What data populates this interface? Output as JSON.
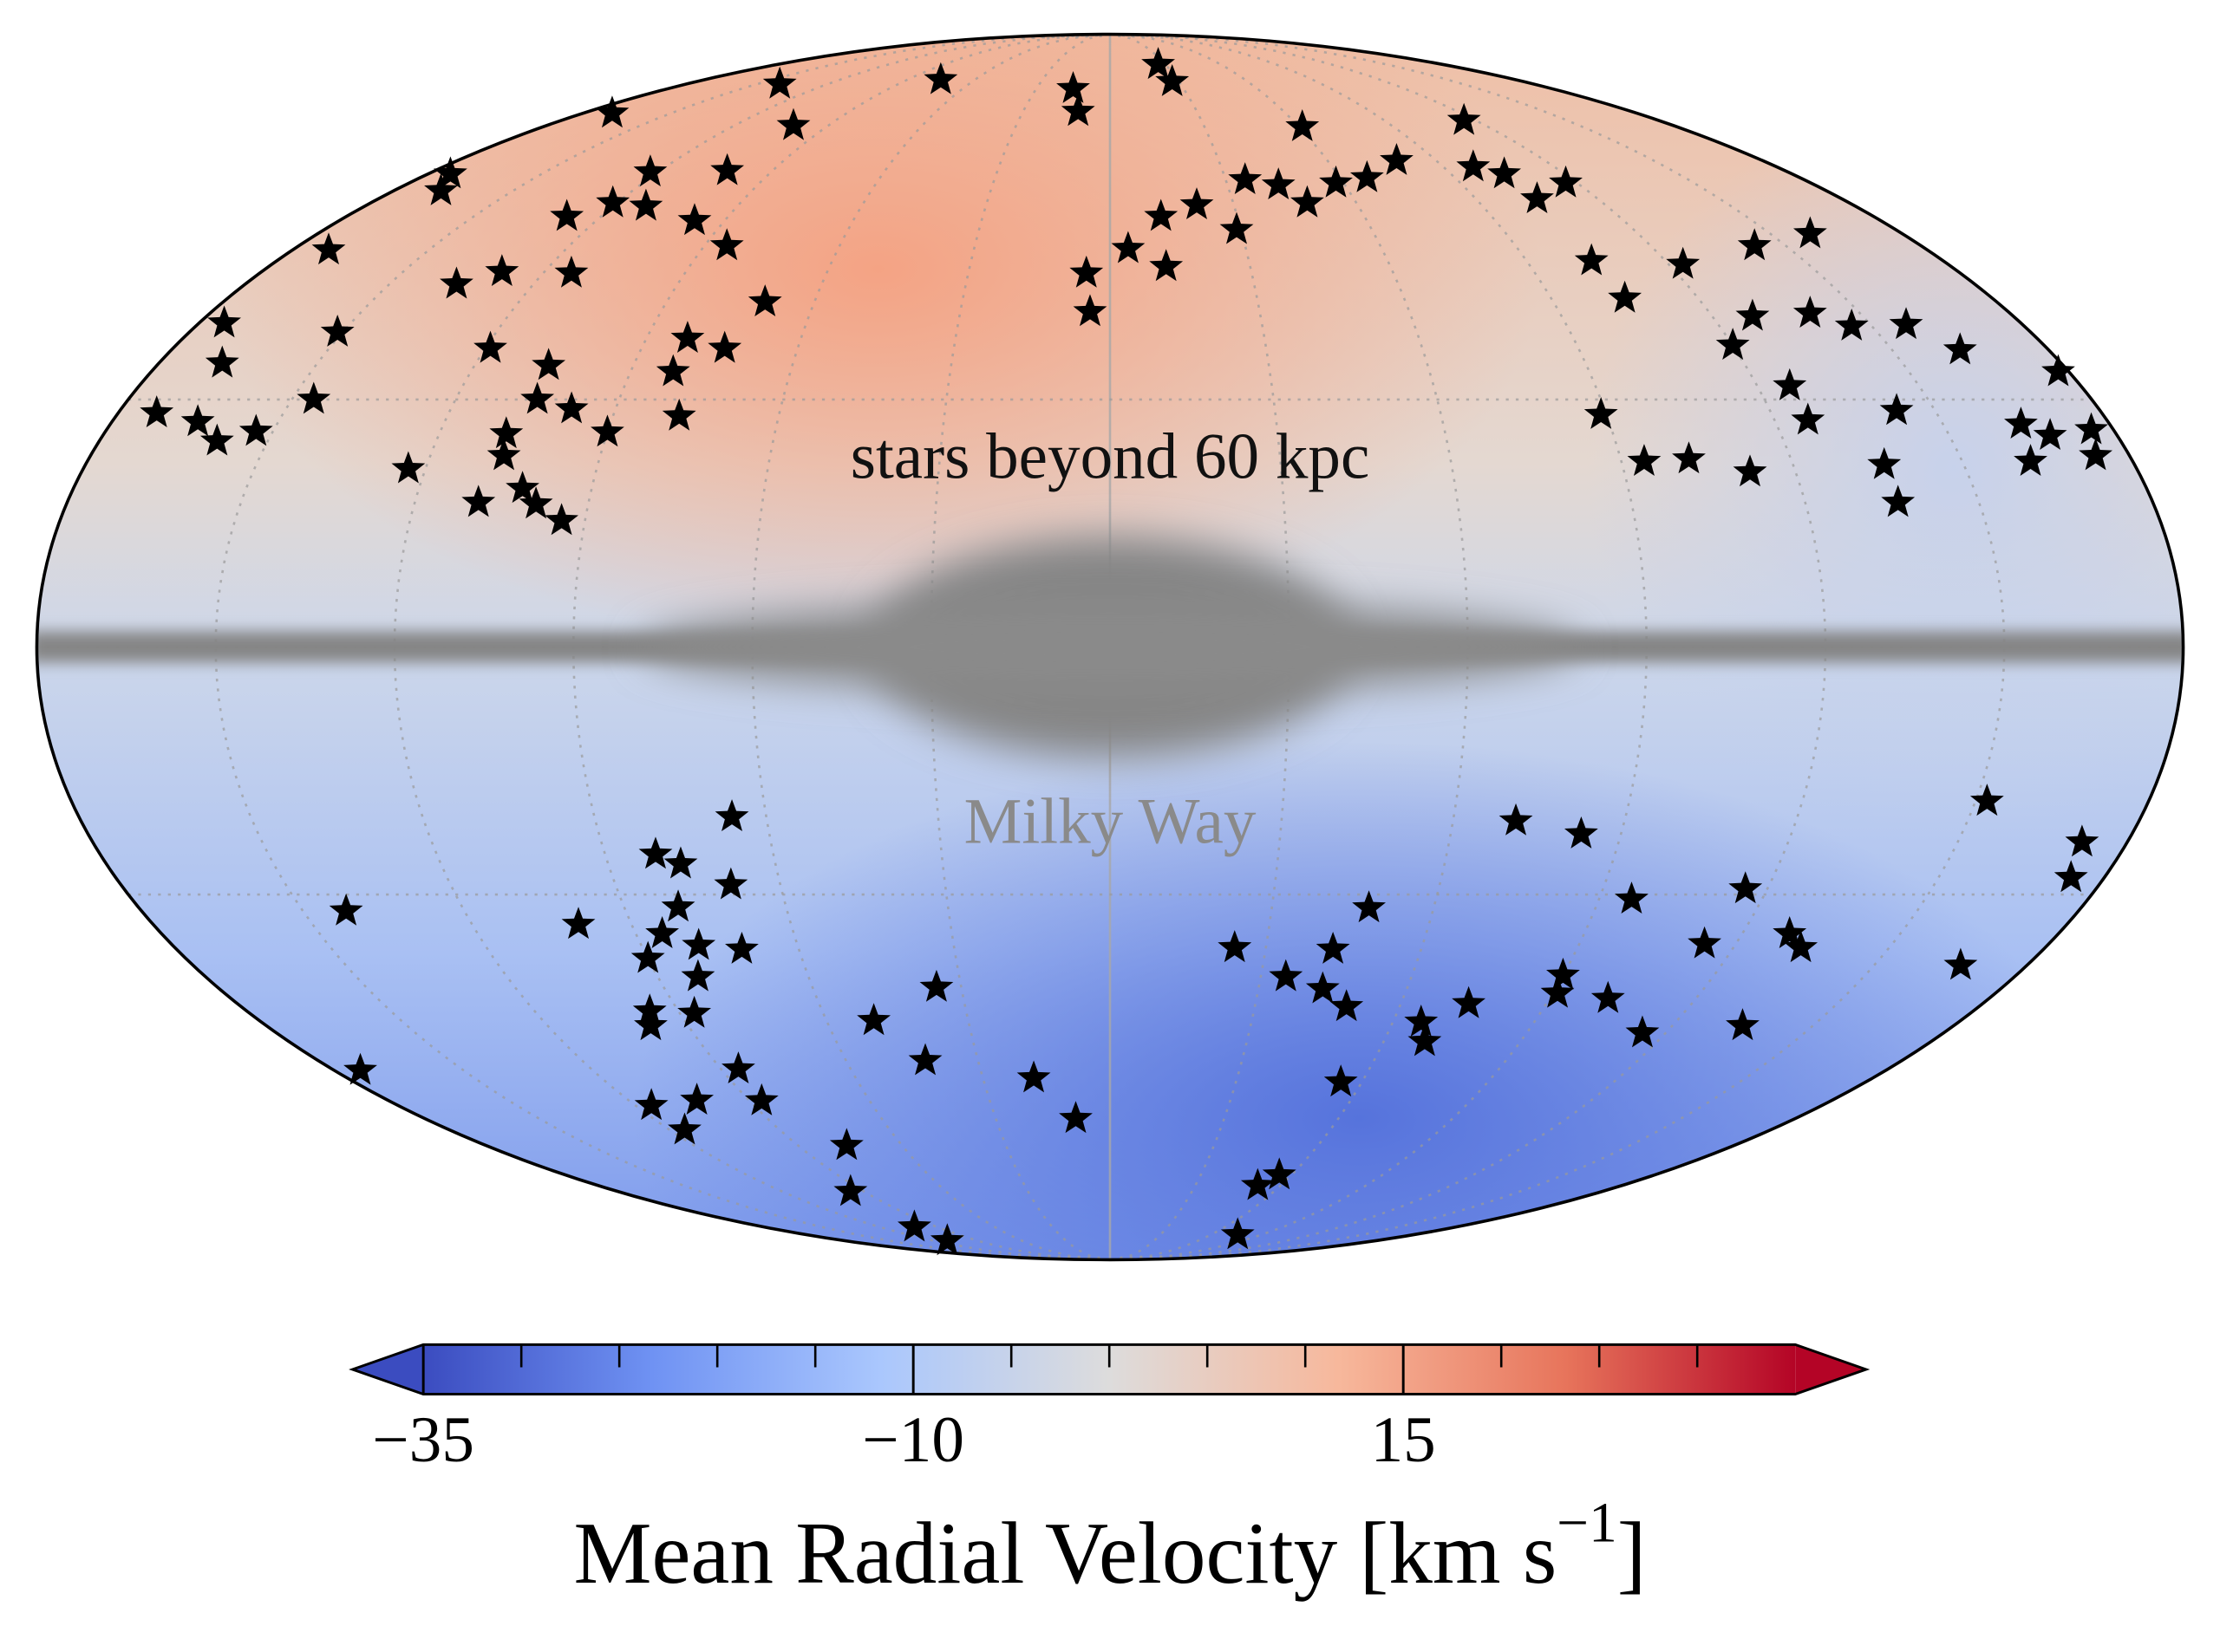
{
  "chart_data": {
    "type": "scatter",
    "projection": "mollweide",
    "marker": "star",
    "color": "#000000",
    "xlim": [
      -180,
      180
    ],
    "ylim": [
      -90,
      90
    ],
    "xticks": [
      -150,
      -120,
      -90,
      -60,
      -30,
      0,
      30,
      60,
      90,
      120,
      150
    ],
    "yticks": [
      -30,
      0,
      30
    ],
    "grid": true,
    "annotations": [
      "stars beyond 60 kpc",
      "Milky Way"
    ],
    "x": [
      -173,
      -164.5,
      -159,
      -153,
      -175,
      -168,
      -172,
      -151,
      -146,
      -123,
      -168,
      -174,
      -136,
      -129,
      -119,
      -108,
      -107,
      -109,
      -102,
      -99,
      -94,
      -106,
      -105,
      -98,
      -90,
      -114,
      -128,
      -170,
      -121,
      -122,
      -112,
      -97,
      -102,
      -85,
      -70,
      -82,
      -74,
      -82,
      -78,
      -140,
      -101,
      -75,
      -15,
      -11,
      26,
      27,
      -5,
      -4,
      4,
      12,
      12,
      21,
      29,
      35,
      43,
      61,
      48,
      58,
      67,
      79,
      116,
      98,
      104,
      105,
      117,
      104,
      105,
      123,
      143,
      159,
      128,
      120,
      140,
      146,
      157,
      163,
      126,
      126,
      143,
      89,
      94,
      102,
      112,
      136,
      136,
      178,
      164,
      168,
      176,
      162,
      174,
      -142,
      -174,
      -100,
      -81,
      -77,
      -66,
      -69,
      -80,
      -85,
      -90,
      -79,
      -71,
      -82,
      -96,
      -98,
      -87,
      -86,
      -116,
      -103,
      -116,
      -87,
      -76,
      -95,
      -102,
      -111,
      -50,
      -35,
      -42,
      -18,
      -9,
      24,
      43,
      48,
      35,
      43,
      49,
      55,
      52,
      56,
      76,
      66,
      69,
      74,
      71,
      83,
      96,
      90,
      91,
      102,
      115,
      135,
      116,
      114,
      129,
      133,
      167,
      152,
      172,
      174
    ],
    "y": [
      28.3,
      27.2,
      24.8,
      26,
      39.8,
      34.6,
      49.7,
      38.6,
      30,
      21.4,
      58.3,
      60.9,
      45,
      46.7,
      36.5,
      25.7,
      23,
      17.3,
      19,
      17.1,
      15.1,
      34.3,
      30,
      28.8,
      25.9,
      46.5,
      54.5,
      71,
      56.5,
      61.2,
      56,
      53.9,
      61.4,
      50.3,
      42.6,
      37.8,
      36.5,
      33.5,
      27.9,
      76.5,
      68.8,
      77.4,
      75.6,
      71.3,
      80.7,
      77,
      46.5,
      41.3,
      49.9,
      54.5,
      47.4,
      56.2,
      52.6,
      60,
      59.2,
      68.6,
      56.5,
      59.5,
      60.3,
      63,
      69.7,
      62,
      60.9,
      57.1,
      59.5,
      48.2,
      43.1,
      47.7,
      50.3,
      52,
      40.7,
      36.9,
      41.1,
      39.4,
      39.6,
      36.3,
      31.7,
      27.4,
      28.6,
      28.1,
      22.3,
      22.6,
      21,
      21.9,
      17.3,
      33.5,
      26.9,
      25.5,
      26.2,
      22.3,
      23,
      -32.1,
      -53.5,
      -33.8,
      -25,
      -26.2,
      -20.4,
      -28.8,
      -31.6,
      -35,
      -38.2,
      -36.5,
      -37,
      -40.6,
      -45.2,
      -47.2,
      -45.5,
      -53.3,
      -58.7,
      -57.9,
      -62.5,
      -58,
      -65,
      -73,
      -80.2,
      -83.5,
      -46.5,
      -42,
      -52.1,
      -54.6,
      -60.7,
      -36.8,
      -37,
      -31.7,
      -40.6,
      -42.2,
      -44.6,
      -55.2,
      -71.9,
      -70,
      -82,
      -46.7,
      -49.4,
      -44.2,
      -20.9,
      -22.5,
      -30.6,
      -40.4,
      -42.8,
      -43.5,
      -48.2,
      -47.2,
      -29.3,
      -36.3,
      -35,
      -36.8,
      -39.1,
      -18.5,
      -23.5,
      -27.9
    ],
    "colorbar": {
      "label": [
        "Mean Radial Velocity [km s",
        "−1",
        "]"
      ],
      "lim": [
        -35,
        35
      ],
      "ticks": [
        {
          "value": -35,
          "label": "−35"
        },
        {
          "value": -10,
          "label": "−10"
        },
        15
      ],
      "minor_ticks": [
        -30,
        -25,
        -20,
        -15,
        -5,
        0,
        5,
        10,
        20,
        25,
        30
      ],
      "extend": "both",
      "colormap": [
        "#3b4cc0",
        "#6f92f3",
        "#aac7fd",
        "#dddcdc",
        "#f7b89c",
        "#e7745b",
        "#b40426"
      ]
    }
  }
}
